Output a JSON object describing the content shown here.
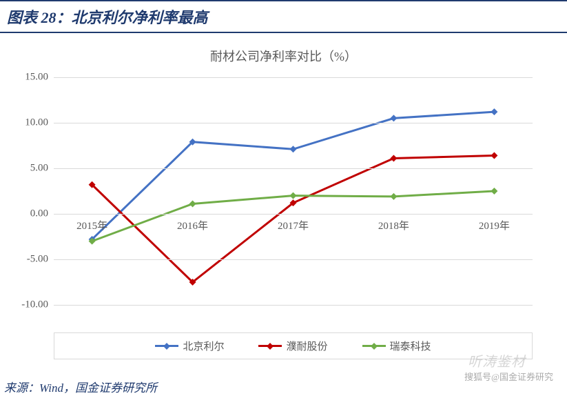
{
  "header": {
    "prefix": "图表 28：",
    "title": "北京利尔净利率最高"
  },
  "chart": {
    "type": "line",
    "title": "耐材公司净利率对比（%）",
    "title_fontsize": 18,
    "title_color": "#595959",
    "categories": [
      "2015年",
      "2016年",
      "2017年",
      "2018年",
      "2019年"
    ],
    "series": [
      {
        "name": "北京利尔",
        "color": "#4472c4",
        "values": [
          -2.8,
          7.9,
          7.1,
          10.5,
          11.2
        ]
      },
      {
        "name": "濮耐股份",
        "color": "#c00000",
        "values": [
          3.2,
          -7.5,
          1.2,
          6.1,
          6.4
        ]
      },
      {
        "name": "瑞泰科技",
        "color": "#70ad47",
        "values": [
          -3.0,
          1.1,
          2.0,
          1.9,
          2.5
        ]
      }
    ],
    "ylim": [
      -10,
      15
    ],
    "ytick_step": 5,
    "yticks": [
      -10.0,
      -5.0,
      0.0,
      5.0,
      10.0,
      15.0
    ],
    "line_width": 3,
    "marker_size": 5,
    "marker_shape": "diamond",
    "background_color": "#ffffff",
    "grid_color": "#d9d9d9",
    "axis_label_color": "#595959",
    "axis_label_fontsize": 15,
    "legend_border_color": "#d9d9d9"
  },
  "footer": {
    "source_label": "来源：",
    "source_text": "Wind，国金证券研究所"
  },
  "watermarks": {
    "main": "听涛鉴材",
    "sub": "搜狐号@国金证券研究"
  }
}
